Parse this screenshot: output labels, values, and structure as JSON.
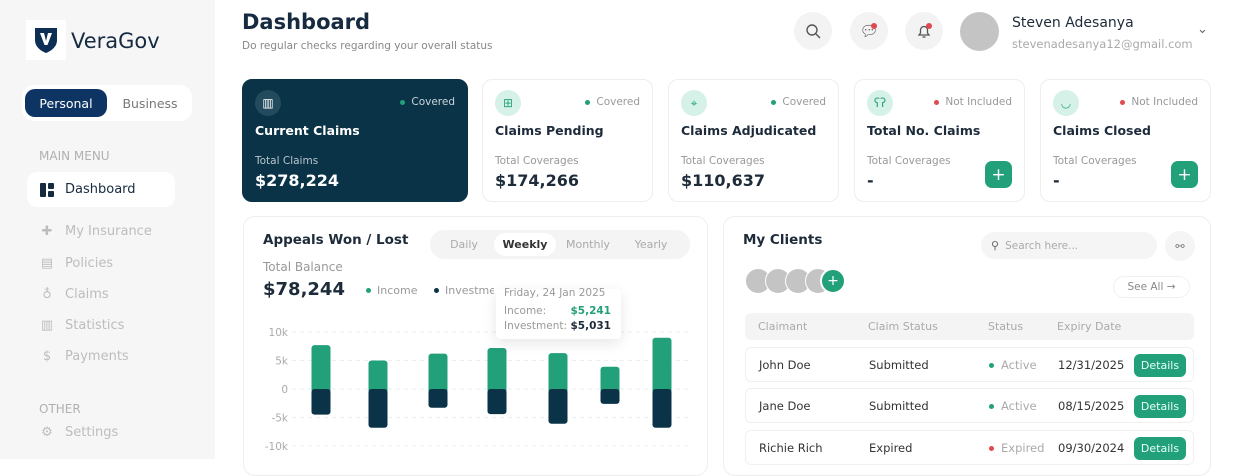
{
  "brand": {
    "name": "VeraGov"
  },
  "account_toggle": {
    "options": [
      "Personal",
      "Business"
    ],
    "selected": "Personal"
  },
  "sidebar": {
    "main_menu_label": "MAIN MENU",
    "items": [
      {
        "label": "Dashboard",
        "icon": "dashboard-icon",
        "active": true
      },
      {
        "label": "My Insurance",
        "icon": "hand-plus-icon"
      },
      {
        "label": "Policies",
        "icon": "policy-doc-icon"
      },
      {
        "label": "Claims",
        "icon": "money-bag-icon"
      },
      {
        "label": "Statistics",
        "icon": "bar-chart-icon"
      },
      {
        "label": "Payments",
        "icon": "cash-icon"
      }
    ],
    "other_label": "OTHER",
    "other_items": [
      {
        "label": "Settings",
        "icon": "gear-icon"
      }
    ]
  },
  "header": {
    "title": "Dashboard",
    "subtitle": "Do regular checks regarding your overall status",
    "user": {
      "name": "Steven Adesanya",
      "email": "stevenadesanya12@gmail.com"
    }
  },
  "cards": [
    {
      "title": "Current Claims",
      "status": "Covered",
      "status_color": "#22a07a",
      "label": "Total Claims",
      "value": "$278,224",
      "icon": "building-icon"
    },
    {
      "title": "Claims Pending",
      "status": "Covered",
      "status_color": "#22a07a",
      "label": "Total Coverages",
      "value": "$174,266",
      "icon": "hospital-icon"
    },
    {
      "title": "Claims Adjudicated",
      "status": "Covered",
      "status_color": "#22a07a",
      "label": "Total Coverages",
      "value": "$110,637",
      "icon": "location-pin-icon"
    },
    {
      "title": "Total No. Claims",
      "status": "Not Included",
      "status_color": "#e0494d",
      "label": "Total Coverages",
      "value": "-",
      "icon": "lungs-icon"
    },
    {
      "title": "Claims Closed",
      "status": "Not Included",
      "status_color": "#e0494d",
      "label": "Total Coverages",
      "value": "-",
      "icon": "tooth-icon"
    }
  ],
  "appeals": {
    "title": "Appeals Won / Lost",
    "tabs": [
      "Daily",
      "Weekly",
      "Monthly",
      "Yearly"
    ],
    "active_tab": "Weekly",
    "balance_label": "Total Balance",
    "balance": "$78,244",
    "tooltip": {
      "date": "Friday, 24 Jan 2025",
      "income_label": "Income:",
      "income": "$5,241",
      "investment_label": "Investment:",
      "investment": "$5,031"
    }
  },
  "chart_data": {
    "type": "bar",
    "stacked": "diverging",
    "ylim": [
      -10000,
      10000
    ],
    "yticks": [
      "10k",
      "5k",
      "0",
      "-5k",
      "-10k"
    ],
    "grid": true,
    "legend_placement": "top",
    "series": [
      {
        "name": "Income",
        "color": "#22a07a",
        "values": [
          7700,
          5000,
          6200,
          7200,
          6300,
          3900,
          9000
        ]
      },
      {
        "name": "Investment",
        "color": "#0a3347",
        "values": [
          -4500,
          -6800,
          -3300,
          -4400,
          -6100,
          -2600,
          -6800
        ]
      }
    ]
  },
  "clients": {
    "title": "My Clients",
    "search_placeholder": "Search here...",
    "see_all": "See All →",
    "columns": [
      "Claimant",
      "Claim Status",
      "Status",
      "Expiry Date"
    ],
    "rows": [
      {
        "claimant": "John Doe",
        "claim_status": "Submitted",
        "status": "Active",
        "status_color": "#22a07a",
        "expiry": "12/31/2025",
        "action": "Details"
      },
      {
        "claimant": "Jane Doe",
        "claim_status": "Submitted",
        "status": "Active",
        "status_color": "#22a07a",
        "expiry": "08/15/2025",
        "action": "Details"
      },
      {
        "claimant": "Richie Rich",
        "claim_status": "Expired",
        "status": "Expired",
        "status_color": "#e0494d",
        "expiry": "09/30/2024",
        "action": "Details"
      }
    ]
  }
}
